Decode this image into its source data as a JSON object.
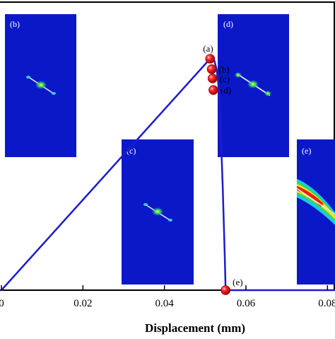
{
  "chart_data": {
    "type": "line",
    "xlabel": "Displacement (mm)",
    "ylabel": "",
    "title": "",
    "xlim": [
      0,
      0.09
    ],
    "x_ticks": [
      {
        "value": 0,
        "label": "0"
      },
      {
        "value": 0.02,
        "label": "0.02"
      },
      {
        "value": 0.04,
        "label": "0.04"
      },
      {
        "value": 0.06,
        "label": "0.06"
      },
      {
        "value": 0.08,
        "label": "0.08"
      }
    ],
    "grid": false,
    "series": [
      {
        "color": "#1c1ccc",
        "points": [
          {
            "x": 0,
            "y": 0
          },
          {
            "x": 0.0512,
            "y": 1.0
          },
          {
            "x": 0.0522,
            "y": 0.995
          },
          {
            "x": 0.0528,
            "y": 0.955
          },
          {
            "x": 0.0532,
            "y": 0.895
          },
          {
            "x": 0.0538,
            "y": 0.7
          },
          {
            "x": 0.0543,
            "y": 0.45
          },
          {
            "x": 0.0548,
            "y": 0.15
          },
          {
            "x": 0.055,
            "y": 0.005
          },
          {
            "x": 0.0552,
            "y": 0.0
          },
          {
            "x": 0.09,
            "y": 0.0
          }
        ]
      }
    ],
    "marked_points": [
      {
        "label": "(a)",
        "x": 0.0512,
        "y": 1.0
      },
      {
        "label": "(b)",
        "x": 0.0516,
        "y": 0.955
      },
      {
        "label": "(c)",
        "x": 0.0518,
        "y": 0.915
      },
      {
        "label": "(d)",
        "x": 0.052,
        "y": 0.865
      },
      {
        "label": "(e)",
        "x": 0.055,
        "y": 0.0
      }
    ],
    "marker_color": "#e8141a",
    "insets": [
      {
        "label": "(b)",
        "background": "#0b18c8",
        "crack": "short"
      },
      {
        "label": "(c)",
        "background": "#0b18c8",
        "crack": "short"
      },
      {
        "label": "(d)",
        "background": "#0b18c8",
        "crack": "long"
      },
      {
        "label": "(e)",
        "background": "#0b18c8",
        "crack": "band"
      }
    ]
  }
}
